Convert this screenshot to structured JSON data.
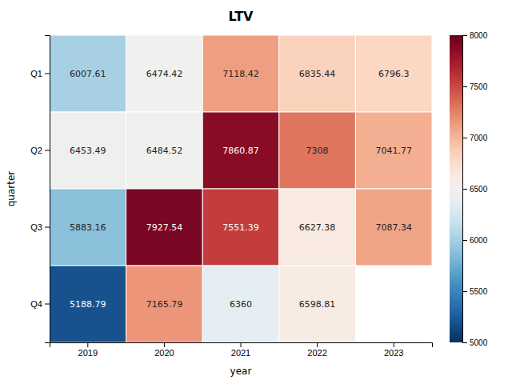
{
  "chart_data": {
    "type": "heatmap",
    "title": "LTV",
    "x_label": "year",
    "y_label": "quarter",
    "x": [
      2019,
      2020,
      2021,
      2022,
      2023
    ],
    "y": [
      "Q1",
      "Q2",
      "Q3",
      "Q4"
    ],
    "values": [
      [
        6007.61,
        6474.42,
        7118.42,
        6835.44,
        6796.3
      ],
      [
        6453.49,
        6484.52,
        7860.87,
        7308,
        7041.77
      ],
      [
        5883.16,
        7927.54,
        7551.39,
        6627.38,
        7087.34
      ],
      [
        5188.79,
        7165.79,
        6360,
        6598.81,
        null
      ]
    ],
    "color": "coolwarm",
    "color_range": [
      5000,
      8000
    ],
    "color_ticks": [
      5000,
      5500,
      6000,
      6500,
      7000,
      7500,
      8000
    ],
    "data_labels": true
  }
}
